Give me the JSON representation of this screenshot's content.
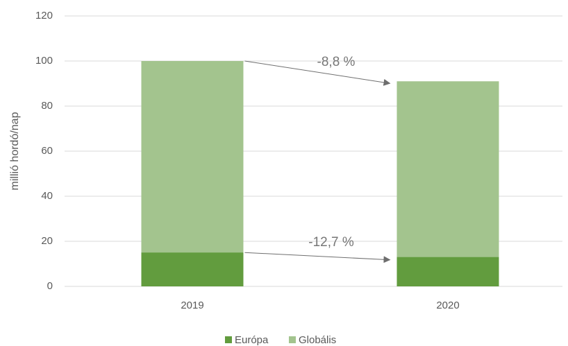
{
  "chart_data": {
    "type": "bar",
    "categories": [
      "2019",
      "2020"
    ],
    "series": [
      {
        "name": "Globális",
        "color": "#a3c48e",
        "values": [
          100,
          91
        ]
      },
      {
        "name": "Európa",
        "color": "#629c3e",
        "values": [
          15,
          13
        ]
      }
    ],
    "y_label": "millió hordó/nap",
    "ylim": [
      0,
      120
    ],
    "yticks": [
      0,
      20,
      40,
      60,
      80,
      100,
      120
    ],
    "grid": true,
    "legend": "bottom",
    "annotations": [
      "-8,8 %",
      "-12,7 %"
    ]
  }
}
